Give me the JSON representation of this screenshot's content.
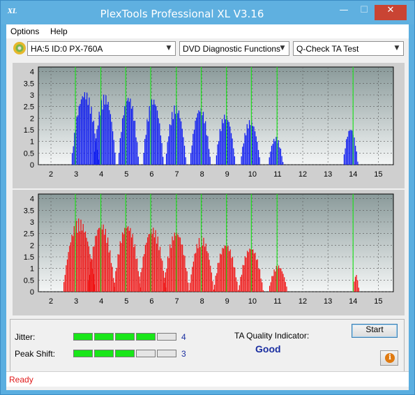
{
  "window": {
    "title": "PlexTools Professional XL V3.16",
    "app_icon_text": "XL",
    "minimize_glyph": "—",
    "maximize_glyph": "☐",
    "close_glyph": "✕"
  },
  "menu": [
    "Options",
    "Help"
  ],
  "toolbar": {
    "drive": "HA:5 ID:0  PX-760A",
    "function": "DVD Diagnostic Functions",
    "test": "Q-Check TA Test",
    "dropdown_glyph": "▼"
  },
  "chart_data": [
    {
      "type": "bar",
      "name": "upper",
      "color": "#0a18f0",
      "xlim": [
        1.5,
        15.6
      ],
      "ylim": [
        0,
        4.2
      ],
      "x_ticks": [
        "2",
        "3",
        "4",
        "5",
        "6",
        "7",
        "8",
        "9",
        "10",
        "11",
        "12",
        "13",
        "14",
        "15"
      ],
      "y_ticks": [
        "0",
        "0.5",
        "1",
        "1.5",
        "2",
        "2.5",
        "3",
        "3.5",
        "4"
      ],
      "marker_lines": [
        2.97,
        3.98,
        4.97,
        5.96,
        6.98,
        7.97,
        8.97,
        9.96,
        10.98,
        14.0
      ],
      "marker_color": "#22e022",
      "peaks": [
        {
          "center": 3.35,
          "height": 3.2,
          "width": 0.55
        },
        {
          "center": 4.14,
          "height": 3.05,
          "width": 0.45
        },
        {
          "center": 5.08,
          "height": 3.0,
          "width": 0.42
        },
        {
          "center": 6.06,
          "height": 2.9,
          "width": 0.42
        },
        {
          "center": 6.96,
          "height": 2.6,
          "width": 0.42
        },
        {
          "center": 7.93,
          "height": 2.5,
          "width": 0.42
        },
        {
          "center": 8.93,
          "height": 2.2,
          "width": 0.4
        },
        {
          "center": 9.92,
          "height": 1.95,
          "width": 0.4
        },
        {
          "center": 10.93,
          "height": 1.2,
          "width": 0.3
        },
        {
          "center": 13.9,
          "height": 1.6,
          "width": 0.3
        }
      ]
    },
    {
      "type": "bar",
      "name": "lower",
      "color": "#f01010",
      "xlim": [
        1.5,
        15.6
      ],
      "ylim": [
        0,
        4.2
      ],
      "x_ticks": [
        "2",
        "3",
        "4",
        "5",
        "6",
        "7",
        "8",
        "9",
        "10",
        "11",
        "12",
        "13",
        "14",
        "15"
      ],
      "y_ticks": [
        "0",
        "0.5",
        "1",
        "1.5",
        "2",
        "2.5",
        "3",
        "3.5",
        "4"
      ],
      "marker_lines": [
        2.97,
        3.98,
        4.97,
        5.96,
        6.98,
        7.97,
        8.97,
        9.96,
        10.98,
        14.0
      ],
      "marker_color": "#22e022",
      "peaks": [
        {
          "center": 3.12,
          "height": 3.15,
          "width": 0.65
        },
        {
          "center": 4.0,
          "height": 3.0,
          "width": 0.55
        },
        {
          "center": 5.03,
          "height": 2.95,
          "width": 0.55
        },
        {
          "center": 6.03,
          "height": 2.8,
          "width": 0.55
        },
        {
          "center": 6.98,
          "height": 2.65,
          "width": 0.52
        },
        {
          "center": 7.98,
          "height": 2.4,
          "width": 0.5
        },
        {
          "center": 8.95,
          "height": 2.1,
          "width": 0.5
        },
        {
          "center": 9.94,
          "height": 1.95,
          "width": 0.5
        },
        {
          "center": 11.02,
          "height": 1.15,
          "width": 0.38
        },
        {
          "center": 14.12,
          "height": 0.75,
          "width": 0.12
        }
      ]
    }
  ],
  "metrics": {
    "jitter": {
      "label": "Jitter:",
      "value": "4",
      "level": 4,
      "max": 5
    },
    "peak_shift": {
      "label": "Peak Shift:",
      "value": "3",
      "level": 3,
      "max": 5
    }
  },
  "ta_quality": {
    "label": "TA Quality Indicator:",
    "value": "Good"
  },
  "buttons": {
    "start": "Start",
    "info": "i"
  },
  "status": "Ready"
}
